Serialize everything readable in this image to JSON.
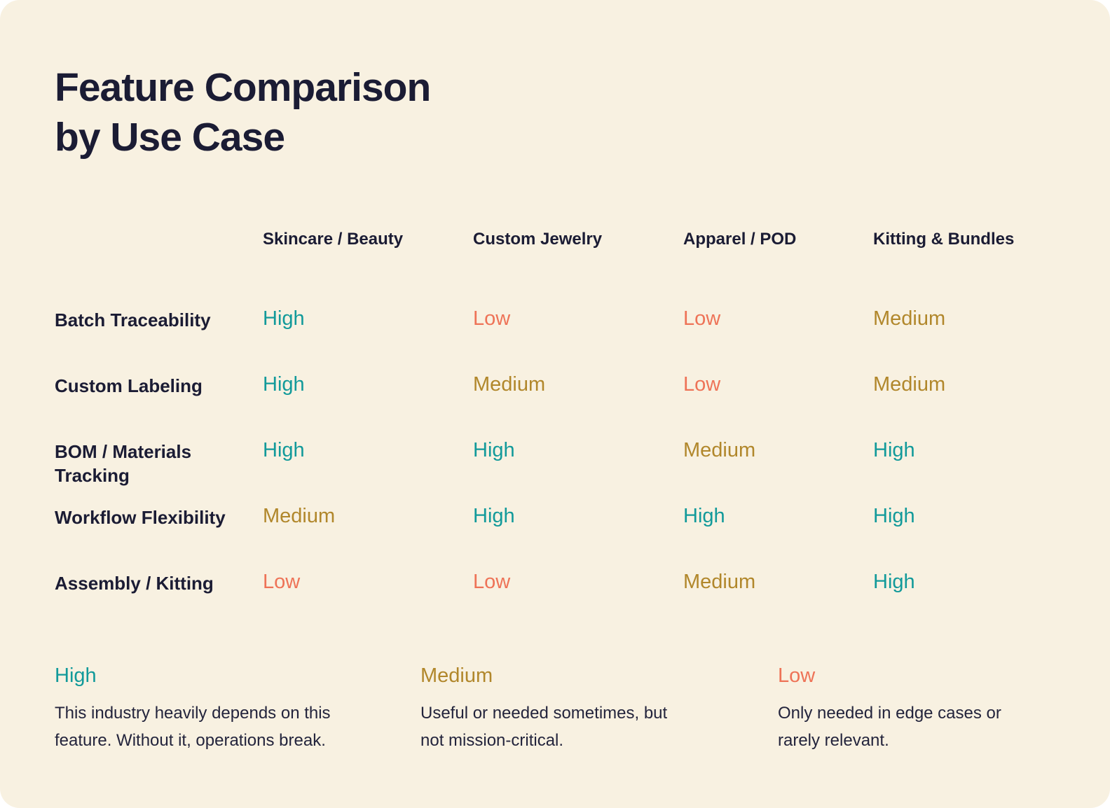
{
  "page": {
    "title_line1": "Feature Comparison",
    "title_line2": "by Use Case",
    "background": "#F8F1E1"
  },
  "colors": {
    "high": "#129A9A",
    "medium": "#B1872B",
    "low": "#EE7357",
    "text": "#1B1C34",
    "background": "#F8F1E1"
  },
  "table": {
    "columns": [
      "Skincare / Beauty",
      "Custom Jewelry",
      "Apparel / POD",
      "Kitting & Bundles"
    ],
    "rows": [
      {
        "feature": "Batch Traceability",
        "values": [
          "High",
          "Low",
          "Low",
          "Medium"
        ]
      },
      {
        "feature": "Custom Labeling",
        "values": [
          "High",
          "Medium",
          "Low",
          "Medium"
        ]
      },
      {
        "feature": "BOM / Materials Tracking",
        "values": [
          "High",
          "High",
          "Medium",
          "High"
        ]
      },
      {
        "feature": "Workflow Flexibility",
        "values": [
          "Medium",
          "High",
          "High",
          "High"
        ]
      },
      {
        "feature": "Assembly / Kitting",
        "values": [
          "Low",
          "Low",
          "Medium",
          "High"
        ]
      }
    ]
  },
  "legend": [
    {
      "level": "High",
      "description": "This industry heavily depends on this feature. Without it, operations break."
    },
    {
      "level": "Medium",
      "description": "Useful or needed sometimes, but not mission-critical."
    },
    {
      "level": "Low",
      "description": "Only needed in edge cases or rarely relevant."
    }
  ]
}
